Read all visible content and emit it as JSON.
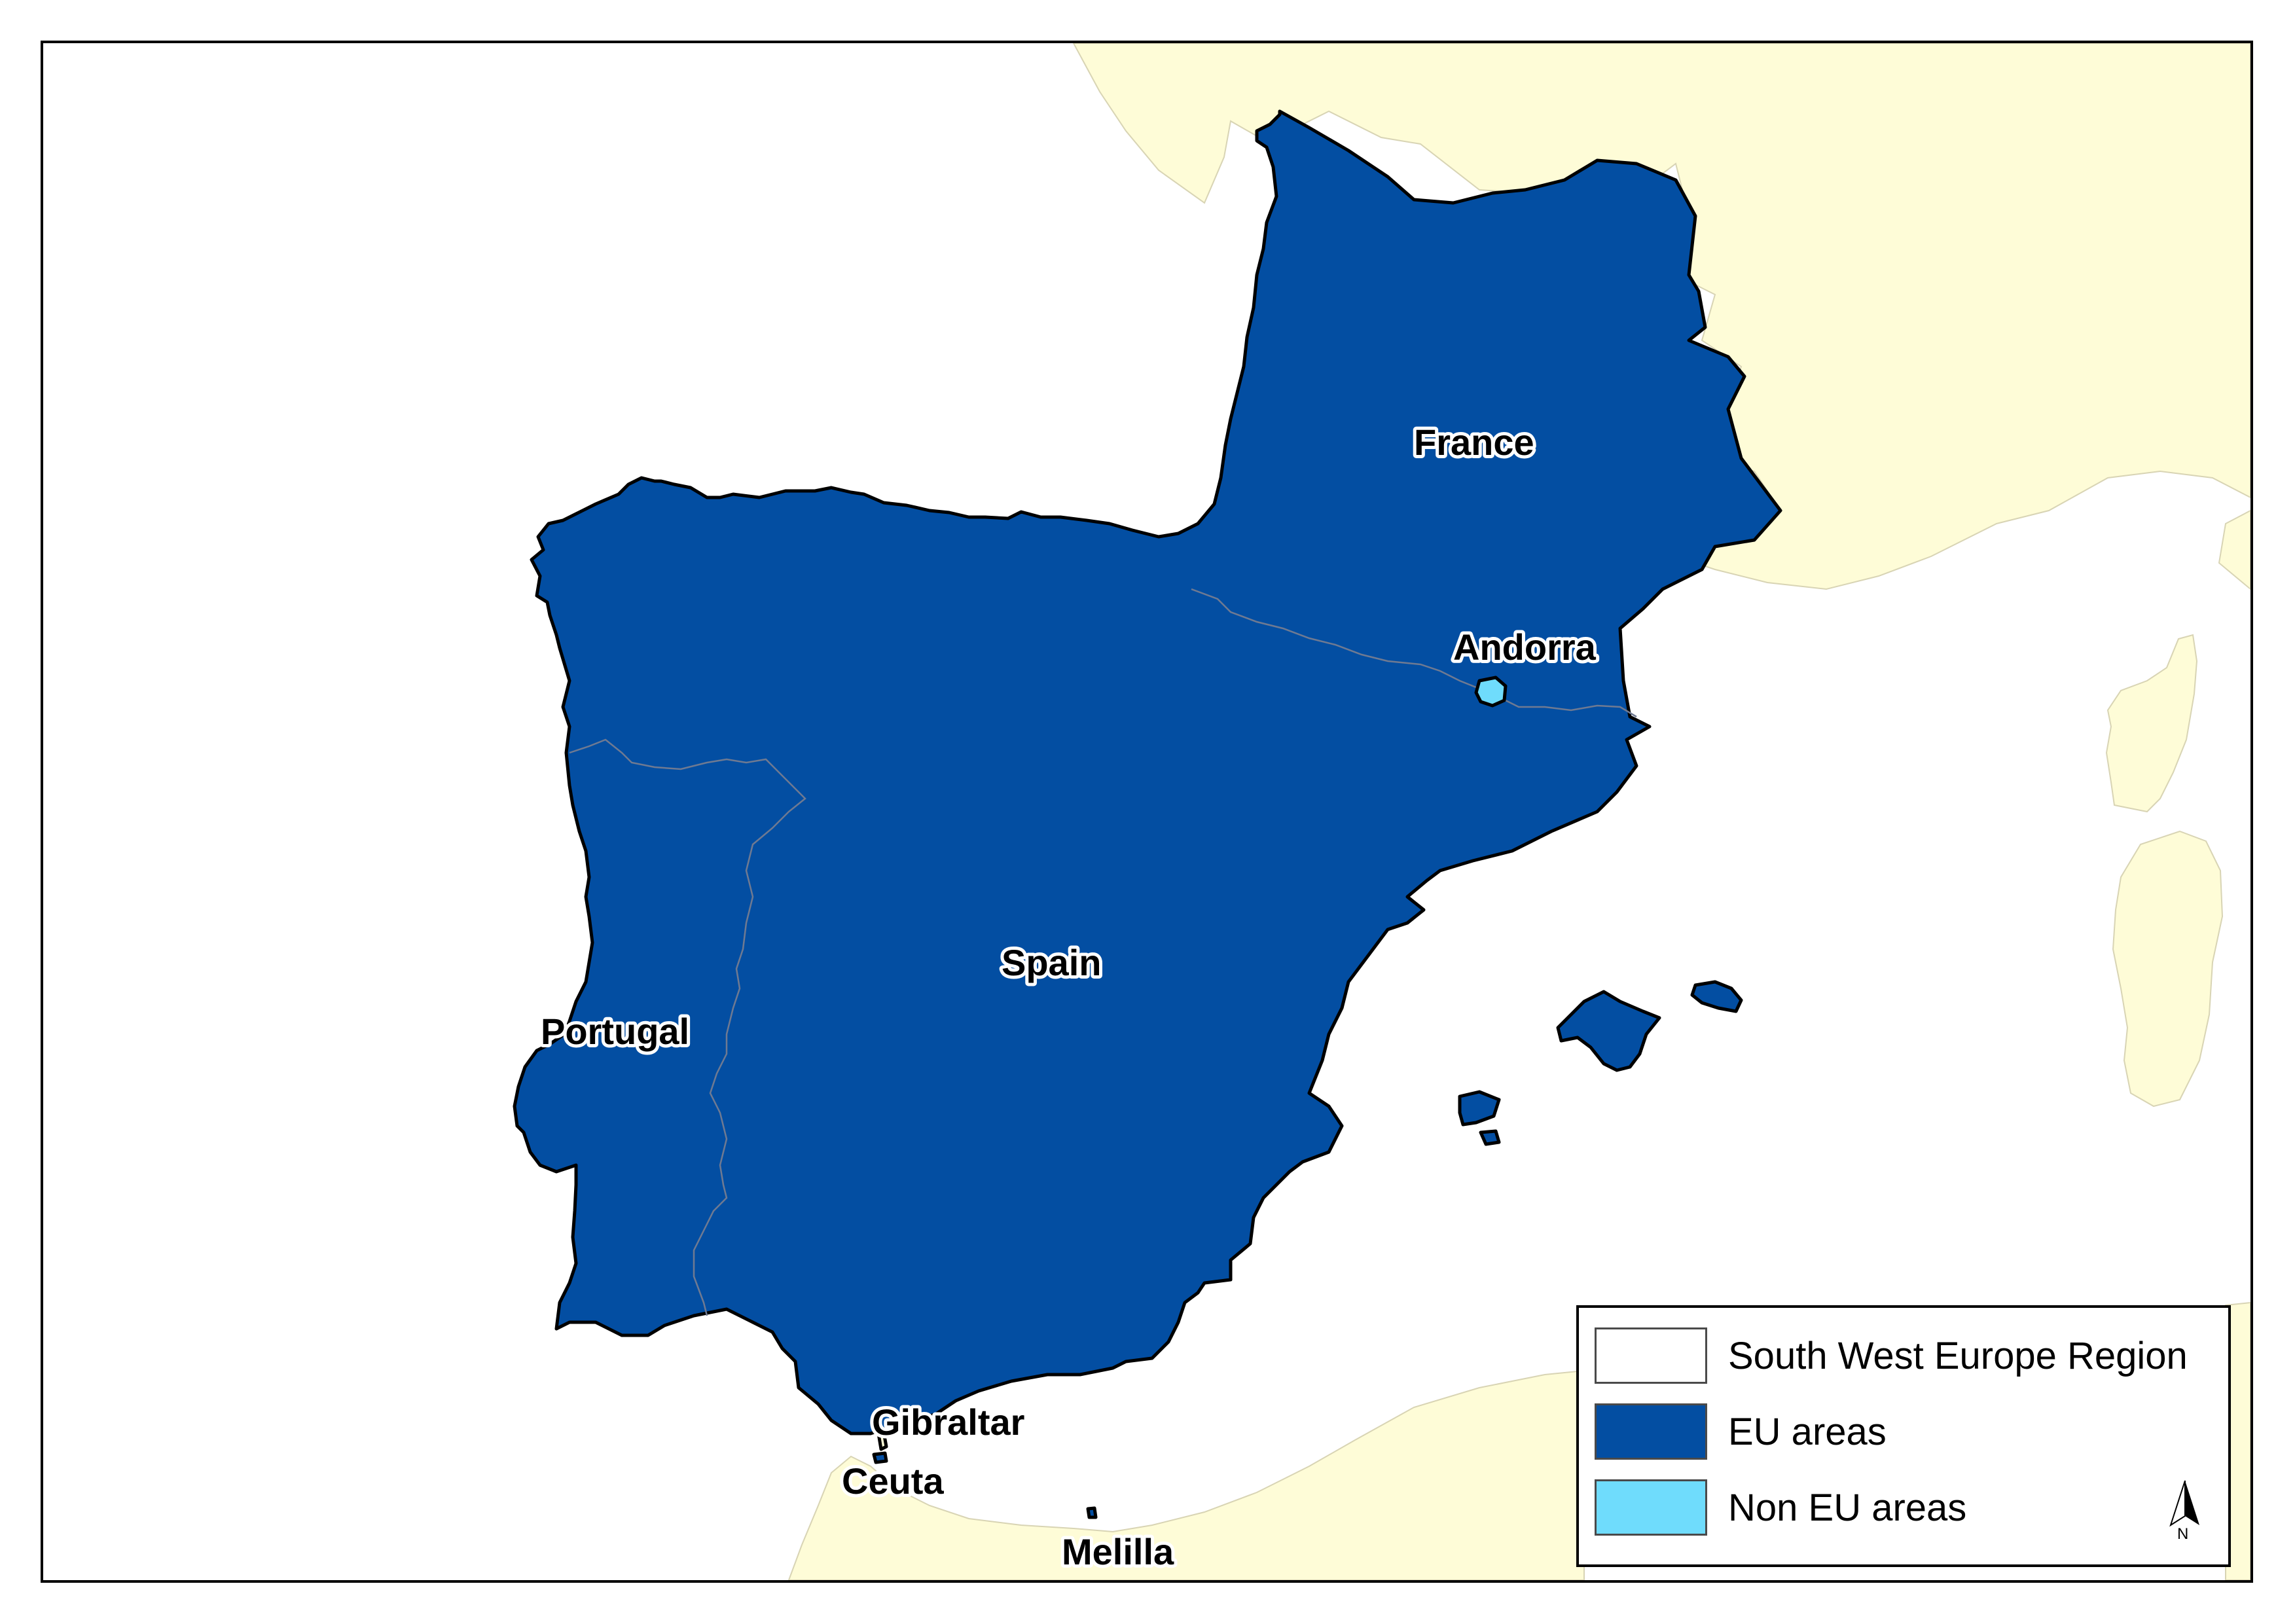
{
  "map": {
    "colors": {
      "sea": "#ffffff",
      "outside_land": "#fefcd7",
      "eu_area": "#034ea2",
      "non_eu_area": "#6fdcfc",
      "region": "#ffffff"
    },
    "labels": {
      "france": "France",
      "andorra": "Andorra",
      "spain": "Spain",
      "portugal": "Portugal",
      "gibraltar": "Gibraltar",
      "ceuta": "Ceuta",
      "melilla": "Melilla"
    }
  },
  "legend": {
    "items": [
      {
        "label": "South West Europe Region",
        "color": "#ffffff"
      },
      {
        "label": "EU areas",
        "color": "#034ea2"
      },
      {
        "label": "Non EU areas",
        "color": "#6fdcfc"
      }
    ]
  },
  "north_arrow": {
    "letter": "N",
    "icon": "north-arrow-icon"
  }
}
